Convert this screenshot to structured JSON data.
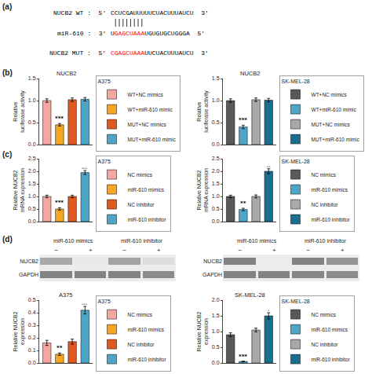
{
  "panel_labels": [
    "(a)",
    "(b)",
    "(c)",
    "(d)"
  ],
  "sequences": [
    {
      "label": "NUCB2 WT :  5'",
      "parts": [
        {
          "text": "CCUCGAUUUUUCUACUUUAUCU"
        }
      ],
      "end": "3'"
    },
    {
      "label": "miR-610 :  3'",
      "parts": [
        {
          "text": "U"
        },
        {
          "text": "GAGCUAAA",
          "color": "red"
        },
        {
          "text": "UGUGUGCUGGGA"
        }
      ],
      "end": "5'"
    },
    {
      "label": "NUCB2 MUT :  5'",
      "parts": [
        {
          "text": "CGAGCUAAA",
          "color": "red"
        },
        {
          "text": "UUCUACUUUAUCU"
        }
      ],
      "end": "3'"
    }
  ],
  "chart_data": [
    {
      "type": "bar",
      "title": "NUCB2",
      "subtitle": "A375",
      "categories": [
        "WT+NC mimics",
        "WT+miR-610 mimic",
        "MUT+NC mimics",
        "MUT+miR-610 mimic"
      ],
      "values": [
        1.0,
        0.45,
        1.02,
        1.03
      ],
      "errors": [
        0.04,
        0.03,
        0.04,
        0.04
      ],
      "colors": [
        "#F4A6A0",
        "#F5A623",
        "#E05A20",
        "#4DA6C8"
      ],
      "ylabel": "Relative\nluciferase activity",
      "ylim": [
        0,
        1.5
      ],
      "yticks": [
        {
          "value": 0,
          "label": "0.0"
        },
        0.5,
        {
          "value": 1,
          "label": "1.0"
        },
        1.5
      ],
      "grid": false,
      "legend": "right",
      "tick_labels": "y",
      "annotations": [
        {
          "category": 1,
          "text": "***",
          "bold": true
        }
      ]
    },
    {
      "type": "bar",
      "title": "NUCB2",
      "subtitle": "SK-MEL-28",
      "categories": [
        "WT+NC mimics",
        "WT+miR-610 mimic",
        "MUT+NC mimics",
        "MUT+miR-610 mimic"
      ],
      "values": [
        1.0,
        0.4,
        1.02,
        1.01
      ],
      "errors": [
        0.04,
        0.04,
        0.04,
        0.04
      ],
      "colors": [
        "#595959",
        "#4DA6C8",
        "#A9A9A9",
        "#1A6E8E"
      ],
      "ylabel": "Relative\nluciferase activity",
      "ylim": [
        0,
        1.5
      ],
      "yticks": [
        {
          "value": 0,
          "label": "0.0"
        },
        0.5,
        {
          "value": 1,
          "label": "1.0"
        },
        1.5
      ],
      "grid": false,
      "legend": "right",
      "tick_labels": "y",
      "annotations": [
        {
          "category": 1,
          "text": "***",
          "bold": true
        }
      ]
    },
    {
      "type": "bar",
      "subtitle": "A375",
      "categories": [
        "NC mimics",
        "miR-610 mimics",
        "NC inhibitor",
        "miR-610 inhibitor"
      ],
      "values": [
        1.0,
        0.5,
        1.0,
        1.95
      ],
      "errors": [
        0.05,
        0.05,
        0.05,
        0.08
      ],
      "colors": [
        "#F4A6A0",
        "#F5A623",
        "#E05A20",
        "#4DA6C8"
      ],
      "ylabel": "Relative NUCB2\nmRNA expression",
      "ylim": [
        0,
        2.5
      ],
      "yticks": [
        {
          "value": 0,
          "label": "0.0"
        },
        0.5,
        {
          "value": 1,
          "label": "1.0"
        },
        1.5,
        {
          "value": 2,
          "label": "2.0"
        },
        2.5
      ],
      "grid": false,
      "legend": "right",
      "tick_labels": "y",
      "annotations": [
        {
          "category": 1,
          "text": "***",
          "bold": true
        },
        {
          "category": 3,
          "text": "‸‸‸",
          "bold": false
        }
      ]
    },
    {
      "type": "bar",
      "subtitle": "SK-MEL-28",
      "categories": [
        "NC mimics",
        "miR-610 mimics",
        "NC inhibitor",
        "miR-610 inhibitor"
      ],
      "values": [
        1.0,
        0.48,
        1.0,
        2.0
      ],
      "errors": [
        0.05,
        0.05,
        0.06,
        0.1
      ],
      "colors": [
        "#595959",
        "#4DA6C8",
        "#A9A9A9",
        "#1A6E8E"
      ],
      "ylabel": "Relative NUCB2\nmRNA expression",
      "ylim": [
        0,
        2.5
      ],
      "yticks": [
        {
          "value": 0,
          "label": "0.0"
        },
        0.5,
        {
          "value": 1,
          "label": "1.0"
        },
        1.5,
        {
          "value": 2,
          "label": "2.0"
        },
        2.5
      ],
      "grid": false,
      "legend": "right",
      "tick_labels": "y",
      "annotations": [
        {
          "category": 1,
          "text": "**",
          "bold": true
        },
        {
          "category": 3,
          "text": "‸‸",
          "bold": false
        }
      ]
    },
    {
      "type": "heatmap",
      "categories": [
        "−",
        "+",
        "−",
        "+"
      ],
      "rows": [
        "NUCB2",
        "GAPDH"
      ],
      "cells": [
        [
          0.45,
          0.12,
          0.48,
          0.18
        ],
        [
          0.65,
          0.65,
          0.65,
          0.6
        ]
      ],
      "zlim": [
        0,
        1
      ],
      "groups": [
        {
          "label": "miR-610 mimics",
          "span": [
            0,
            1
          ]
        },
        {
          "label": "miR-610 inhibitor",
          "span": [
            2,
            3
          ]
        }
      ]
    },
    {
      "type": "heatmap",
      "categories": [
        "−",
        "+",
        "−",
        "+"
      ],
      "rows": [
        "NUCB2",
        "GAPDH"
      ],
      "cells": [
        [
          0.65,
          0.1,
          0.65,
          0.55
        ],
        [
          0.65,
          0.65,
          0.63,
          0.6
        ]
      ],
      "zlim": [
        0,
        1
      ],
      "groups": [
        {
          "label": "miR-610 mimics",
          "span": [
            0,
            1
          ]
        },
        {
          "label": "miR-610 inhibitor",
          "span": [
            2,
            3
          ]
        }
      ]
    },
    {
      "type": "bar",
      "title": "A375",
      "subtitle": "A375",
      "categories": [
        "NC mimics",
        "miR-610 mimics",
        "NC inhibitor",
        "miR-610 inhibitor"
      ],
      "values": [
        0.16,
        0.07,
        0.17,
        0.42
      ],
      "errors": [
        0.02,
        0.01,
        0.02,
        0.03
      ],
      "colors": [
        "#F4A6A0",
        "#F5A623",
        "#E05A20",
        "#4DA6C8"
      ],
      "ylabel": "Relative NUCB2\nexpression",
      "ylim": [
        0,
        0.5
      ],
      "yticks": [
        {
          "value": 0,
          "label": "0.0"
        },
        0.1,
        0.2,
        0.3,
        0.4,
        0.5
      ],
      "grid": false,
      "legend": "right",
      "tick_labels": "y",
      "annotations": [
        {
          "category": 1,
          "text": "**",
          "bold": true
        },
        {
          "category": 3,
          "text": "‸‸‸",
          "bold": false
        }
      ]
    },
    {
      "type": "bar",
      "title": "SK-MEL-28",
      "subtitle": "SK-MEL-28",
      "categories": [
        "NC mimics",
        "miR-610 mimics",
        "NC inhibitor",
        "miR-610 inhibitor"
      ],
      "values": [
        0.9,
        0.05,
        1.05,
        1.5
      ],
      "errors": [
        0.06,
        0.01,
        0.06,
        0.1
      ],
      "colors": [
        "#595959",
        "#4DA6C8",
        "#A9A9A9",
        "#1A6E8E"
      ],
      "ylabel": "Relative NUCB2\nexpression",
      "ylim": [
        0,
        2.0
      ],
      "yticks": [
        {
          "value": 0,
          "label": "0.0"
        },
        0.5,
        {
          "value": 1,
          "label": "1.0"
        },
        1.5,
        {
          "value": 2,
          "label": "2.0"
        }
      ],
      "grid": false,
      "legend": "right",
      "tick_labels": "y",
      "annotations": [
        {
          "category": 1,
          "text": "***",
          "bold": true
        },
        {
          "category": 3,
          "text": "‸",
          "bold": false
        }
      ]
    }
  ]
}
